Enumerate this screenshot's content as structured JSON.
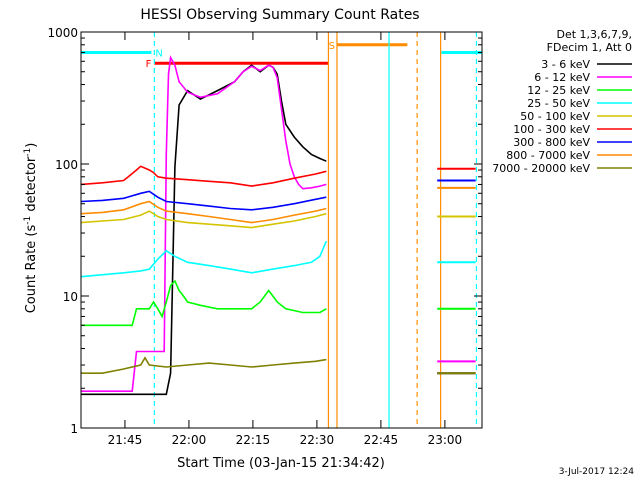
{
  "chart_data": {
    "type": "line",
    "title": "HESSI Observing Summary Count Rates",
    "xlabel": "Start Time (03-Jan-15 21:34:42)",
    "ylabel_main": "Count Rate (s",
    "ylabel_sup1": "-1",
    "ylabel_mid": " detector",
    "ylabel_sup2": "-1",
    "ylabel_end": ")",
    "x_unit": "minutes after 21:34:42",
    "xlim": [
      0,
      94
    ],
    "ylim": [
      1,
      1000
    ],
    "yscale": "log",
    "x_ticks": [
      {
        "label": "21:45",
        "x": 10.3
      },
      {
        "label": "22:00",
        "x": 25.3
      },
      {
        "label": "22:15",
        "x": 40.3
      },
      {
        "label": "22:30",
        "x": 55.3
      },
      {
        "label": "22:45",
        "x": 70.3
      },
      {
        "label": "23:00",
        "x": 85.3
      }
    ],
    "y_ticks": [
      {
        "label": "1",
        "y": 1
      },
      {
        "label": "10",
        "y": 10
      },
      {
        "label": "100",
        "y": 100
      },
      {
        "label": "1000",
        "y": 1000
      }
    ],
    "legend_header": [
      "Det 1,3,6,7,9,",
      "FDecim 1, Att 0"
    ],
    "legend_placement": "right",
    "series": [
      {
        "name": "3 - 6 keV",
        "color": "#000000",
        "x": [
          0,
          20,
          21,
          22,
          23,
          25,
          28,
          32,
          36,
          38,
          40,
          42,
          44,
          45,
          46,
          47,
          48,
          50,
          52,
          54,
          56,
          57.5
        ],
        "y": [
          1.8,
          1.8,
          2.6,
          95,
          280,
          360,
          310,
          360,
          420,
          500,
          560,
          500,
          560,
          540,
          480,
          300,
          200,
          160,
          135,
          118,
          110,
          105
        ]
      },
      {
        "name": "6 - 12 keV",
        "color": "#ff00ff",
        "x": [
          0,
          12,
          13,
          19.5,
          20,
          20.5,
          21,
          22,
          23,
          25,
          28,
          32,
          36,
          38,
          40,
          42,
          44,
          45,
          46,
          47,
          48,
          49,
          50,
          51,
          52,
          54,
          56,
          57.5
        ],
        "y": [
          1.9,
          1.9,
          3.8,
          3.8,
          120,
          480,
          640,
          560,
          420,
          350,
          320,
          340,
          420,
          500,
          550,
          510,
          560,
          540,
          450,
          260,
          150,
          100,
          80,
          70,
          65,
          66,
          68,
          70
        ]
      },
      {
        "name": "12 - 25 keV",
        "color": "#00ff00",
        "x": [
          0,
          12,
          13,
          16,
          17,
          18,
          19,
          20,
          21,
          22,
          23,
          24,
          25,
          28,
          32,
          36,
          40,
          42,
          44,
          46,
          48,
          52,
          56,
          57.5
        ],
        "y": [
          6,
          6,
          8,
          8,
          9,
          8,
          7,
          9,
          12,
          13,
          11,
          10,
          9,
          8.5,
          8,
          8,
          8,
          9,
          11,
          9,
          8,
          7.5,
          7.5,
          8
        ]
      },
      {
        "name": "25 - 50 keV",
        "color": "#00ffff",
        "x": [
          0,
          10,
          14,
          16,
          18,
          20,
          22,
          25,
          30,
          35,
          40,
          45,
          50,
          54,
          56,
          57.5
        ],
        "y": [
          14,
          15,
          15.5,
          16,
          19,
          22,
          20,
          18,
          17,
          16,
          15,
          16,
          17,
          18,
          20,
          26
        ]
      },
      {
        "name": "50 - 100 keV",
        "color": "#d4c400",
        "x": [
          0,
          5,
          10,
          14,
          16,
          18,
          20,
          25,
          30,
          35,
          40,
          45,
          50,
          55,
          57.5
        ],
        "y": [
          36,
          37,
          38,
          41,
          44,
          40,
          38,
          36,
          35,
          34,
          33,
          35,
          37,
          40,
          42
        ]
      },
      {
        "name": "100 - 300 keV",
        "color": "#ff0000",
        "x": [
          0,
          5,
          10,
          13,
          14,
          16,
          17,
          18,
          20,
          25,
          30,
          35,
          40,
          45,
          50,
          55,
          57.5
        ],
        "y": [
          70,
          72,
          75,
          90,
          96,
          90,
          86,
          80,
          78,
          76,
          74,
          72,
          68,
          72,
          78,
          84,
          88
        ]
      },
      {
        "name": "300 - 800 keV",
        "color": "#0000ff",
        "x": [
          0,
          5,
          10,
          14,
          16,
          18,
          20,
          25,
          30,
          35,
          40,
          45,
          50,
          55,
          57.5
        ],
        "y": [
          52,
          53,
          55,
          60,
          62,
          56,
          52,
          50,
          48,
          46,
          45,
          47,
          50,
          54,
          56
        ]
      },
      {
        "name": "800 - 7000 keV",
        "color": "#ff8c00",
        "x": [
          0,
          5,
          10,
          14,
          16,
          18,
          20,
          25,
          30,
          35,
          40,
          45,
          50,
          55,
          57.5
        ],
        "y": [
          42,
          43,
          45,
          50,
          52,
          47,
          44,
          42,
          40,
          38,
          36,
          38,
          41,
          44,
          46
        ]
      },
      {
        "name": "7000 - 20000 keV",
        "color": "#808000",
        "x": [
          0,
          5,
          10,
          14,
          15,
          16,
          20,
          25,
          30,
          35,
          40,
          45,
          50,
          55,
          57.5
        ],
        "y": [
          2.6,
          2.6,
          2.8,
          3.0,
          3.4,
          3.0,
          2.9,
          3.0,
          3.1,
          3.0,
          2.9,
          3.0,
          3.1,
          3.2,
          3.3
        ]
      }
    ],
    "right_segment": {
      "x": [
        83.5,
        92.5
      ],
      "values": {
        "3 - 6 keV": 2.6,
        "6 - 12 keV": 3.2,
        "12 - 25 keV": 8,
        "25 - 50 keV": 18,
        "50 - 100 keV": 40,
        "100 - 300 keV": 92,
        "300 - 800 keV": 75,
        "800 - 7000 keV": 66,
        "7000 - 20000 keV": 2.6
      }
    },
    "flag_bars": [
      {
        "label": "N",
        "color": "#00ffff",
        "x_start": 0,
        "x_end": 16.5,
        "y": 700
      },
      {
        "label": "",
        "color": "#00ffff",
        "x_start": 84.5,
        "x_end": 94,
        "y": 700
      },
      {
        "label": "F",
        "color": "#ff0000",
        "x_start": 17.2,
        "x_end": 58,
        "y": 580
      },
      {
        "label": "S",
        "color": "#ff8c00",
        "x_start": 60,
        "x_end": 76.5,
        "y": 800
      }
    ],
    "vertical_markers": [
      {
        "x": 17.2,
        "color": "#00ffff",
        "style": "dashed"
      },
      {
        "x": 58,
        "color": "#ff8c00",
        "style": "solid"
      },
      {
        "x": 60,
        "color": "#ff8c00",
        "style": "solid"
      },
      {
        "x": 72.2,
        "color": "#00ffff",
        "style": "solid"
      },
      {
        "x": 78.8,
        "color": "#ff8c00",
        "style": "dashed"
      },
      {
        "x": 84.3,
        "color": "#ff8c00",
        "style": "solid"
      },
      {
        "x": 92.7,
        "color": "#00ffff",
        "style": "dashed"
      }
    ],
    "footer_date": "3-Jul-2017 12:24"
  }
}
